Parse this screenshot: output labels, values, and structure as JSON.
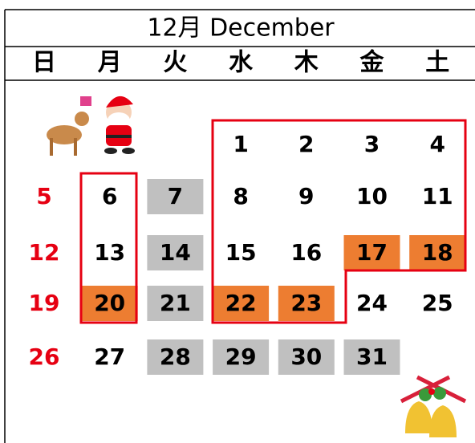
{
  "header": {
    "title": "12月  December"
  },
  "weekdays": [
    "日",
    "月",
    "火",
    "水",
    "木",
    "金",
    "土"
  ],
  "weekday_color": "#000000",
  "weeks": [
    [
      null,
      null,
      null,
      {
        "text": "1"
      },
      {
        "text": "2"
      },
      {
        "text": "3"
      },
      {
        "text": "4"
      }
    ],
    [
      {
        "text": "5",
        "color": "#e60012"
      },
      {
        "text": "6"
      },
      {
        "text": "7",
        "fill": "#c0c0c0"
      },
      {
        "text": "8"
      },
      {
        "text": "9"
      },
      {
        "text": "10"
      },
      {
        "text": "11"
      }
    ],
    [
      {
        "text": "12",
        "color": "#e60012"
      },
      {
        "text": "13"
      },
      {
        "text": "14",
        "fill": "#c0c0c0"
      },
      {
        "text": "15"
      },
      {
        "text": "16"
      },
      {
        "text": "17",
        "fill": "#ed7d31"
      },
      {
        "text": "18",
        "fill": "#ed7d31"
      }
    ],
    [
      {
        "text": "19",
        "color": "#e60012"
      },
      {
        "text": "20",
        "fill": "#ed7d31"
      },
      {
        "text": "21",
        "fill": "#c0c0c0"
      },
      {
        "text": "22",
        "fill": "#ed7d31"
      },
      {
        "text": "23",
        "fill": "#ed7d31"
      },
      {
        "text": "24"
      },
      {
        "text": "25"
      }
    ],
    [
      {
        "text": "26",
        "color": "#e60012"
      },
      {
        "text": "27"
      },
      {
        "text": "28",
        "fill": "#c0c0c0"
      },
      {
        "text": "29",
        "fill": "#c0c0c0"
      },
      {
        "text": "30",
        "fill": "#c0c0c0"
      },
      {
        "text": "31",
        "fill": "#c0c0c0"
      },
      null
    ]
  ]
}
